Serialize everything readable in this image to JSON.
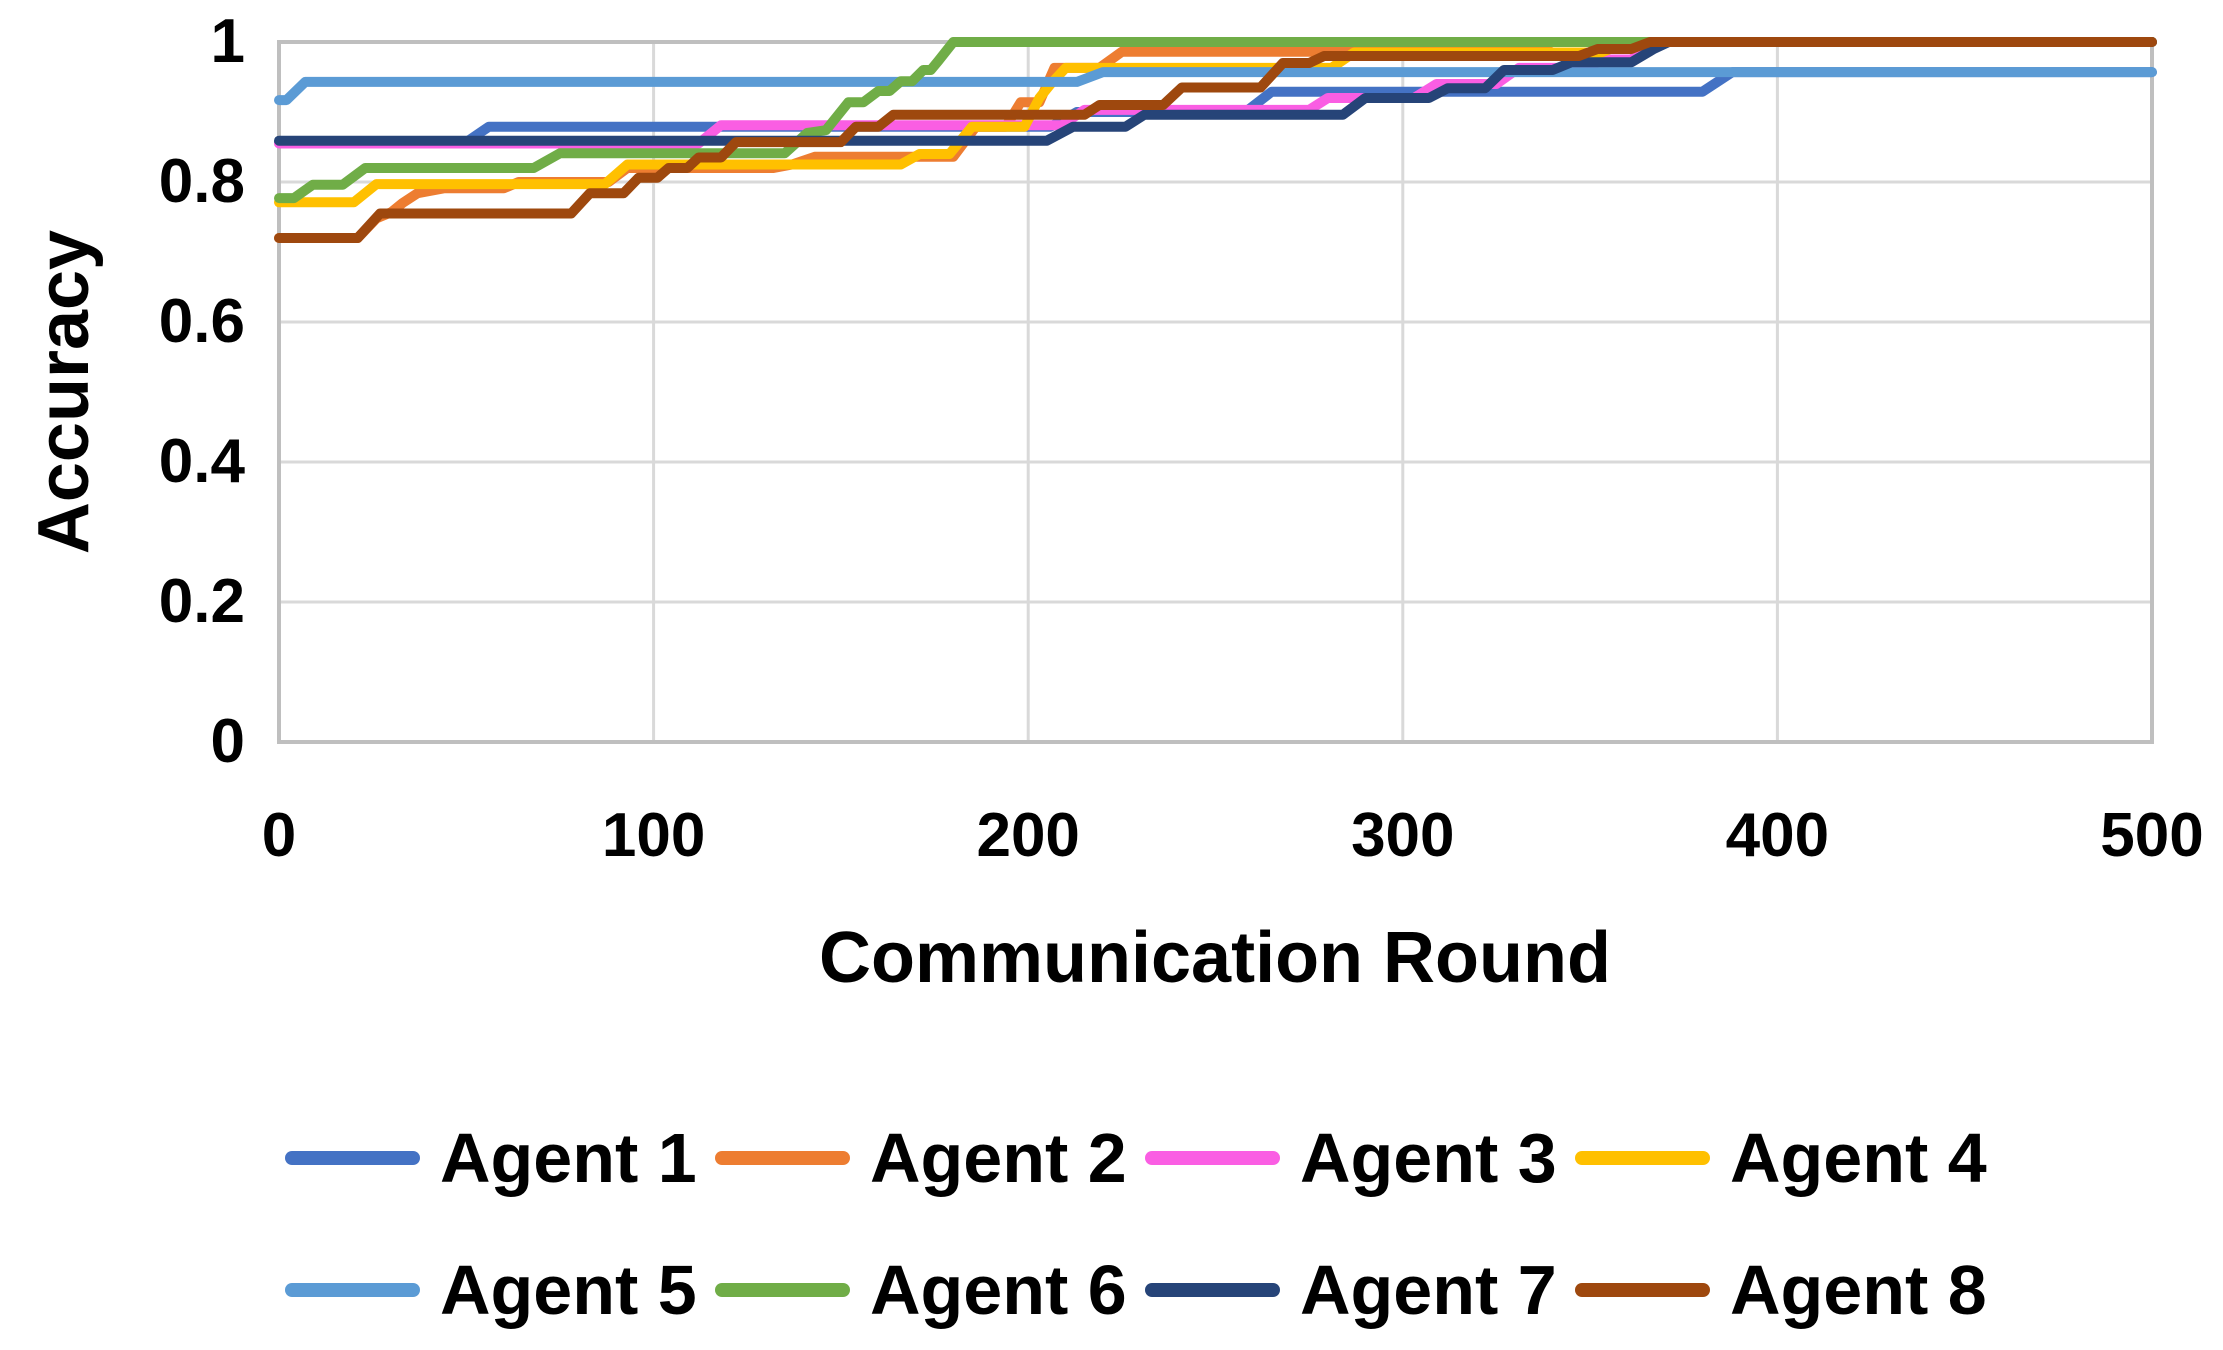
{
  "colors": {
    "background": "#FFFFFF",
    "gridline": "#D9D9D9",
    "plot_border": "#BFBFBF",
    "text": "#000000"
  },
  "chart_data": {
    "type": "line",
    "title": "",
    "xlabel": "Communication Round",
    "ylabel": "Accuracy",
    "xlim": [
      0,
      500
    ],
    "ylim": [
      0,
      1
    ],
    "xticks": [
      0,
      100,
      200,
      300,
      400,
      500
    ],
    "xtick_labels": [
      "0",
      "100",
      "200",
      "300",
      "400",
      "500"
    ],
    "yticks": [
      0,
      0.2,
      0.4,
      0.6,
      0.8,
      1
    ],
    "ytick_labels": [
      "0",
      "0.2",
      "0.4",
      "0.6",
      "0.8",
      "1"
    ],
    "grid": true,
    "legend_position": "bottom",
    "legend_rows": [
      [
        "Agent 1",
        "Agent 2",
        "Agent 3",
        "Agent 4"
      ],
      [
        "Agent 5",
        "Agent 6",
        "Agent 7",
        "Agent 8"
      ]
    ],
    "series": [
      {
        "name": "Agent 1",
        "color": "#4472C4",
        "points": [
          [
            0,
            0.857
          ],
          [
            50,
            0.857
          ],
          [
            56,
            0.879
          ],
          [
            206,
            0.879
          ],
          [
            213,
            0.9
          ],
          [
            258,
            0.9
          ],
          [
            265,
            0.929
          ],
          [
            380,
            0.929
          ],
          [
            388,
            0.957
          ],
          [
            500,
            0.957
          ]
        ]
      },
      {
        "name": "Agent 2",
        "color": "#ED7D31",
        "points": [
          [
            0,
            0.72
          ],
          [
            21,
            0.72
          ],
          [
            26,
            0.748
          ],
          [
            30,
            0.757
          ],
          [
            33,
            0.77
          ],
          [
            37,
            0.784
          ],
          [
            44,
            0.791
          ],
          [
            60,
            0.791
          ],
          [
            64,
            0.8
          ],
          [
            88,
            0.8
          ],
          [
            93,
            0.82
          ],
          [
            132,
            0.82
          ],
          [
            137,
            0.825
          ],
          [
            143,
            0.836
          ],
          [
            180,
            0.836
          ],
          [
            186,
            0.879
          ],
          [
            194,
            0.879
          ],
          [
            198,
            0.914
          ],
          [
            203,
            0.914
          ],
          [
            207,
            0.963
          ],
          [
            219,
            0.963
          ],
          [
            225,
            0.986
          ],
          [
            333,
            0.986
          ],
          [
            340,
            1
          ],
          [
            500,
            1
          ]
        ]
      },
      {
        "name": "Agent 3",
        "color": "#FA5EE3",
        "points": [
          [
            0,
            0.855
          ],
          [
            112,
            0.855
          ],
          [
            118,
            0.881
          ],
          [
            209,
            0.881
          ],
          [
            215,
            0.903
          ],
          [
            275,
            0.903
          ],
          [
            280,
            0.92
          ],
          [
            303,
            0.92
          ],
          [
            309,
            0.94
          ],
          [
            325,
            0.94
          ],
          [
            331,
            0.963
          ],
          [
            348,
            0.963
          ],
          [
            354,
            0.975
          ],
          [
            361,
            0.975
          ],
          [
            367,
            1
          ],
          [
            500,
            1
          ]
        ]
      },
      {
        "name": "Agent 4",
        "color": "#FFC000",
        "points": [
          [
            0,
            0.771
          ],
          [
            20,
            0.771
          ],
          [
            26,
            0.797
          ],
          [
            87,
            0.797
          ],
          [
            93,
            0.825
          ],
          [
            166,
            0.825
          ],
          [
            171,
            0.84
          ],
          [
            179,
            0.84
          ],
          [
            185,
            0.879
          ],
          [
            199,
            0.879
          ],
          [
            203,
            0.92
          ],
          [
            206,
            0.94
          ],
          [
            210,
            0.963
          ],
          [
            281,
            0.963
          ],
          [
            287,
            0.985
          ],
          [
            353,
            0.985
          ],
          [
            360,
            1
          ],
          [
            500,
            1
          ]
        ]
      },
      {
        "name": "Agent 5",
        "color": "#5B9BD5",
        "points": [
          [
            0,
            0.917
          ],
          [
            2,
            0.917
          ],
          [
            7,
            0.943
          ],
          [
            213,
            0.943
          ],
          [
            220,
            0.957
          ],
          [
            500,
            0.957
          ]
        ]
      },
      {
        "name": "Agent 6",
        "color": "#70AD47",
        "points": [
          [
            0,
            0.777
          ],
          [
            4,
            0.777
          ],
          [
            9,
            0.796
          ],
          [
            17,
            0.796
          ],
          [
            23,
            0.82
          ],
          [
            68,
            0.82
          ],
          [
            75,
            0.841
          ],
          [
            135,
            0.841
          ],
          [
            141,
            0.87
          ],
          [
            146,
            0.874
          ],
          [
            152,
            0.914
          ],
          [
            156,
            0.914
          ],
          [
            160,
            0.93
          ],
          [
            163,
            0.93
          ],
          [
            166,
            0.944
          ],
          [
            169,
            0.944
          ],
          [
            172,
            0.96
          ],
          [
            174,
            0.96
          ],
          [
            176,
            0.973
          ],
          [
            180,
            1
          ],
          [
            500,
            1
          ]
        ]
      },
      {
        "name": "Agent 7",
        "color": "#264478",
        "points": [
          [
            0,
            0.859
          ],
          [
            205,
            0.859
          ],
          [
            212,
            0.879
          ],
          [
            226,
            0.879
          ],
          [
            231,
            0.896
          ],
          [
            284,
            0.896
          ],
          [
            290,
            0.92
          ],
          [
            307,
            0.92
          ],
          [
            312,
            0.934
          ],
          [
            322,
            0.934
          ],
          [
            327,
            0.96
          ],
          [
            340,
            0.96
          ],
          [
            345,
            0.971
          ],
          [
            361,
            0.971
          ],
          [
            367,
            0.99
          ],
          [
            371,
            1
          ],
          [
            500,
            1
          ]
        ]
      },
      {
        "name": "Agent 8",
        "color": "#9E480E",
        "points": [
          [
            0,
            0.72
          ],
          [
            21,
            0.72
          ],
          [
            27,
            0.755
          ],
          [
            78,
            0.755
          ],
          [
            83,
            0.784
          ],
          [
            92,
            0.784
          ],
          [
            96,
            0.806
          ],
          [
            101,
            0.806
          ],
          [
            104,
            0.82
          ],
          [
            109,
            0.82
          ],
          [
            112,
            0.835
          ],
          [
            118,
            0.835
          ],
          [
            122,
            0.857
          ],
          [
            150,
            0.857
          ],
          [
            154,
            0.879
          ],
          [
            160,
            0.879
          ],
          [
            164,
            0.896
          ],
          [
            215,
            0.896
          ],
          [
            219,
            0.91
          ],
          [
            236,
            0.91
          ],
          [
            241,
            0.935
          ],
          [
            262,
            0.935
          ],
          [
            268,
            0.97
          ],
          [
            275,
            0.97
          ],
          [
            279,
            0.98
          ],
          [
            347,
            0.98
          ],
          [
            352,
            0.99
          ],
          [
            361,
            0.99
          ],
          [
            366,
            1
          ],
          [
            500,
            1
          ]
        ]
      }
    ]
  }
}
